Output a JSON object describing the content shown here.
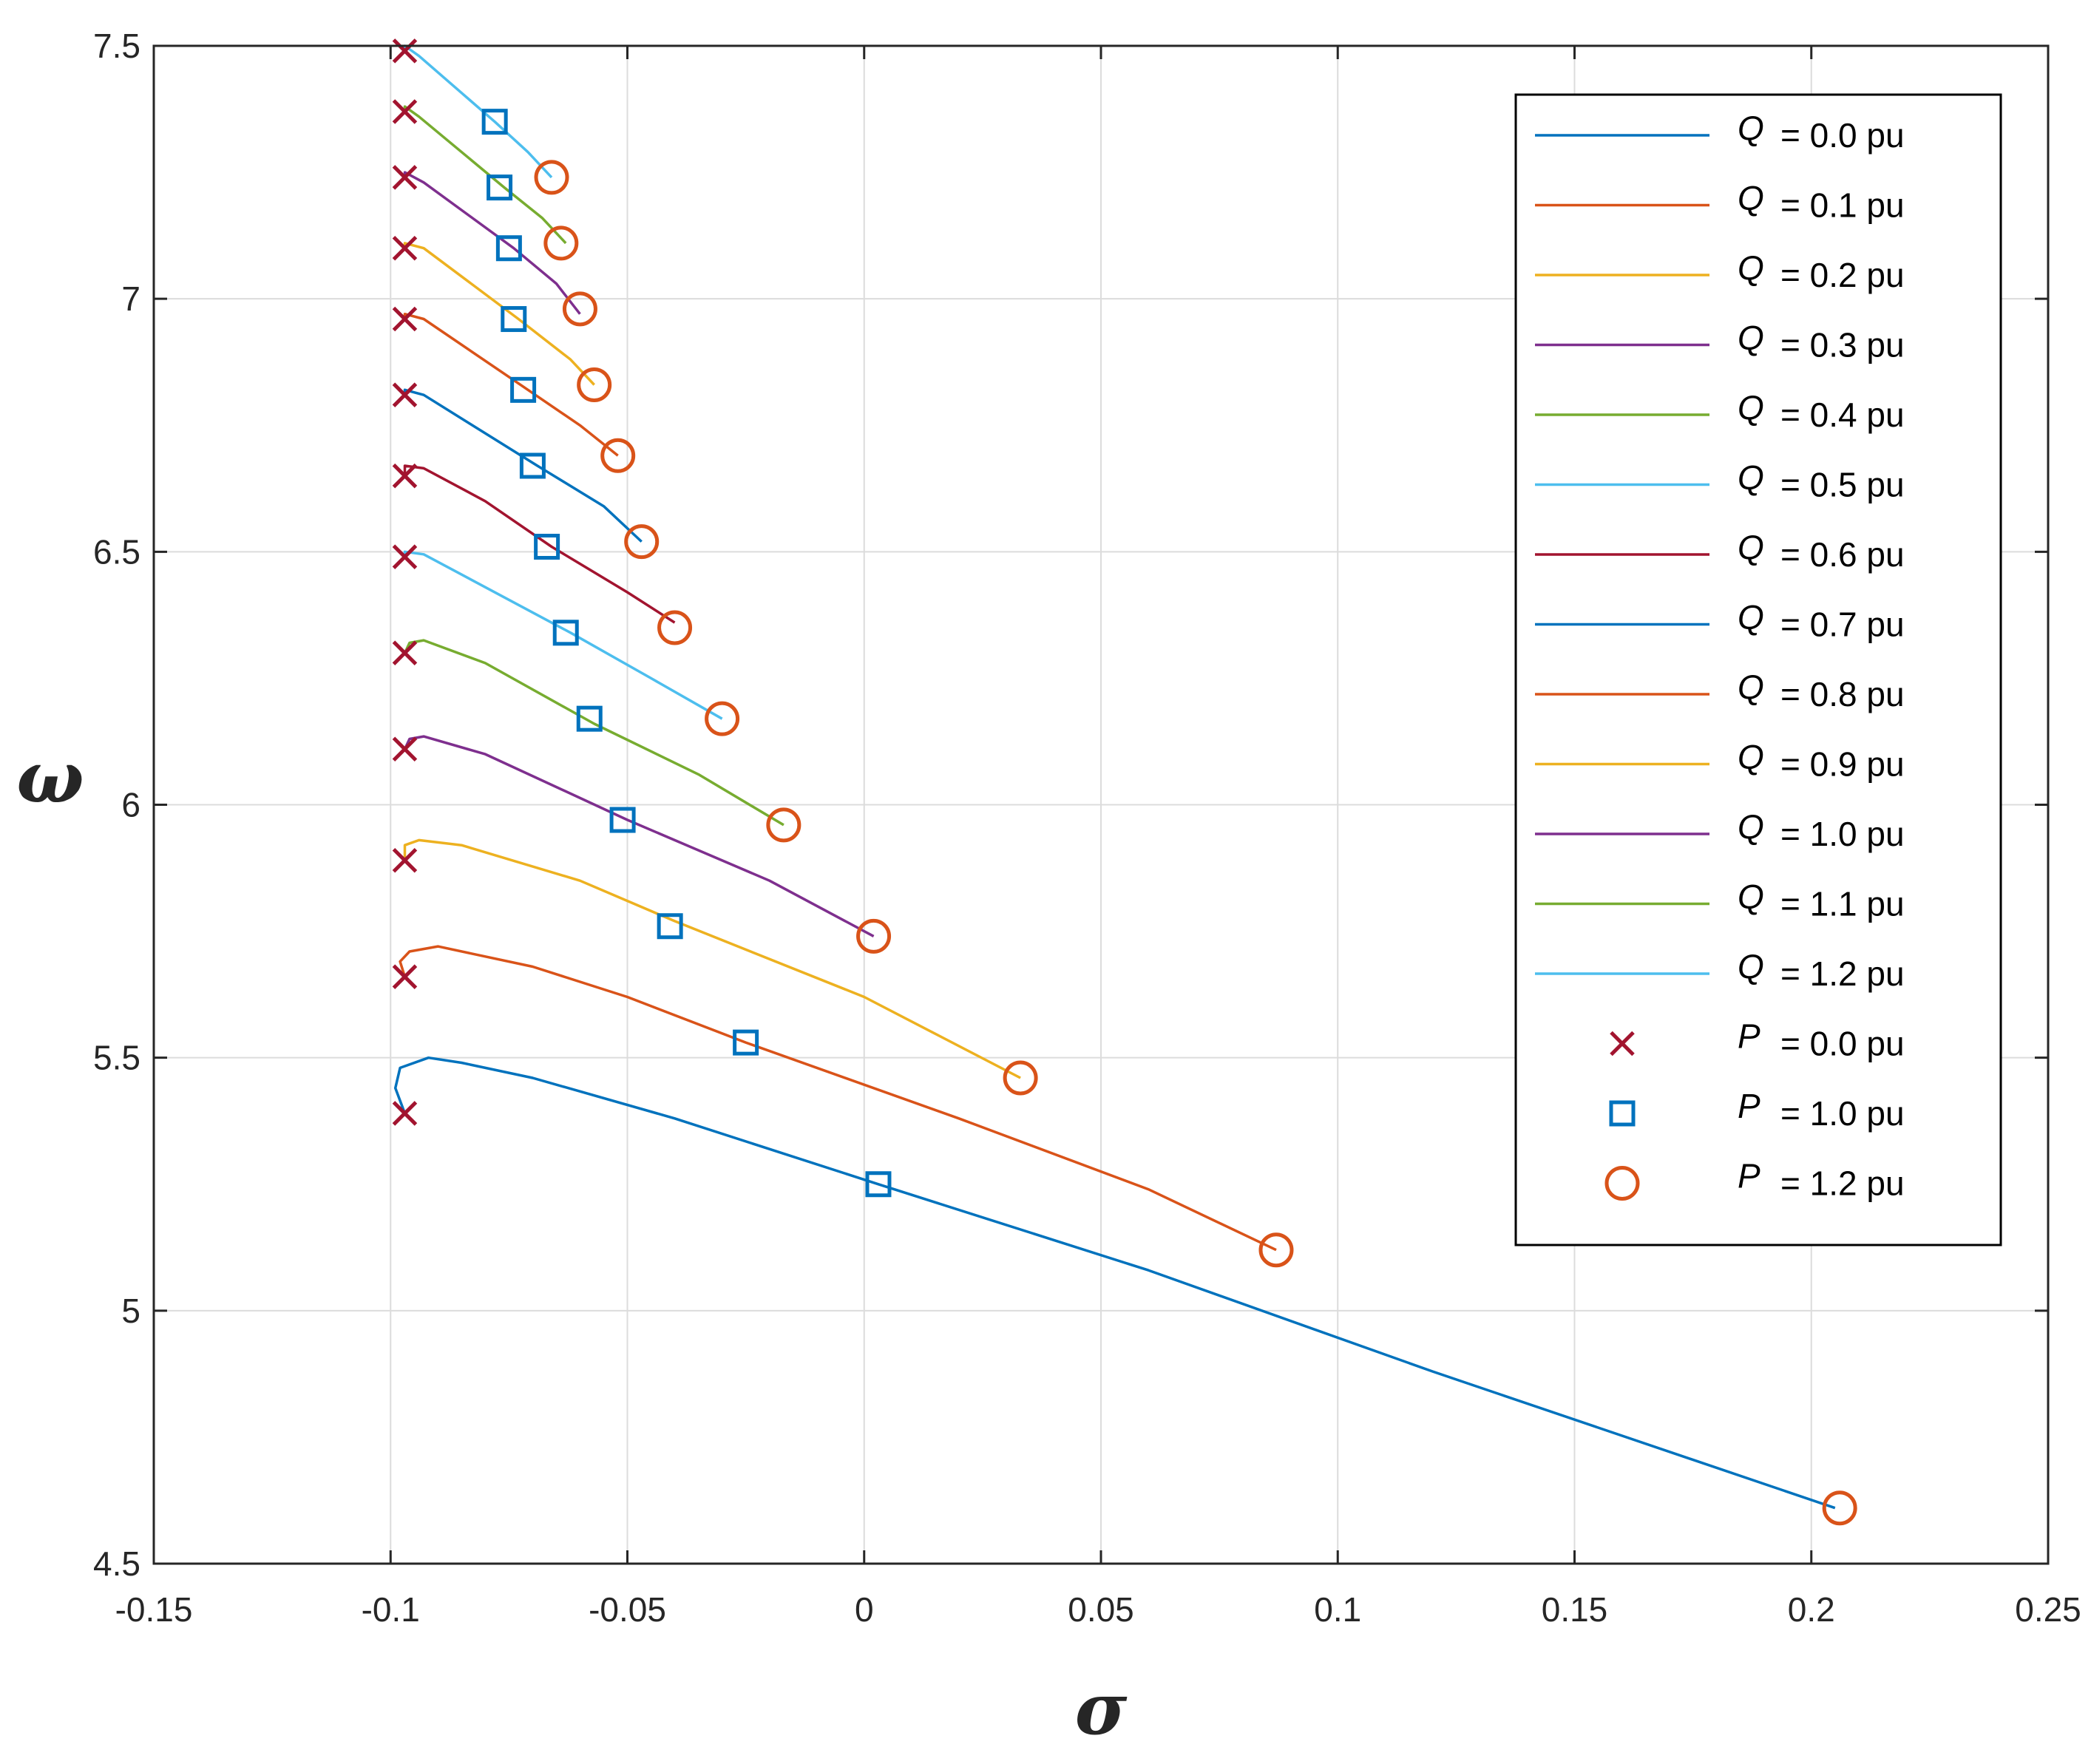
{
  "chart_data": {
    "type": "line",
    "title": "",
    "xlabel": "σ",
    "ylabel": "ω",
    "xlim": [
      -0.15,
      0.25
    ],
    "ylim": [
      4.5,
      7.5
    ],
    "xticks": [
      -0.15,
      -0.1,
      -0.05,
      0,
      0.05,
      0.1,
      0.15,
      0.2,
      0.25
    ],
    "xtick_labels": [
      "-0.15",
      "-0.1",
      "-0.05",
      "0",
      "0.05",
      "0.1",
      "0.15",
      "0.2",
      "0.25"
    ],
    "yticks": [
      4.5,
      5,
      5.5,
      6,
      6.5,
      7,
      7.5
    ],
    "ytick_labels": [
      "4.5",
      "5",
      "5.5",
      "6",
      "6.5",
      "7",
      "7.5"
    ],
    "grid": true,
    "legend_position": "top-right",
    "series": [
      {
        "name": "Q",
        "label": "= 0.0 pu",
        "color": "#0072BD",
        "points": [
          [
            -0.097,
            5.39
          ],
          [
            -0.099,
            5.44
          ],
          [
            -0.098,
            5.48
          ],
          [
            -0.092,
            5.5
          ],
          [
            -0.085,
            5.49
          ],
          [
            -0.07,
            5.46
          ],
          [
            -0.04,
            5.38
          ],
          [
            0.003,
            5.25
          ],
          [
            0.06,
            5.08
          ],
          [
            0.12,
            4.88
          ],
          [
            0.205,
            4.61
          ]
        ]
      },
      {
        "name": "Q",
        "label": "= 0.1 pu",
        "color": "#D95319",
        "points": [
          [
            -0.097,
            5.66
          ],
          [
            -0.098,
            5.69
          ],
          [
            -0.096,
            5.71
          ],
          [
            -0.09,
            5.72
          ],
          [
            -0.07,
            5.68
          ],
          [
            -0.05,
            5.62
          ],
          [
            -0.025,
            5.53
          ],
          [
            0.02,
            5.38
          ],
          [
            0.06,
            5.24
          ],
          [
            0.087,
            5.12
          ]
        ]
      },
      {
        "name": "Q",
        "label": "= 0.2 pu",
        "color": "#EDB120",
        "points": [
          [
            -0.097,
            5.89
          ],
          [
            -0.097,
            5.92
          ],
          [
            -0.094,
            5.93
          ],
          [
            -0.085,
            5.92
          ],
          [
            -0.06,
            5.85
          ],
          [
            -0.04,
            5.77
          ],
          [
            0.0,
            5.62
          ],
          [
            0.033,
            5.46
          ]
        ]
      },
      {
        "name": "Q",
        "label": "= 0.3 pu",
        "color": "#7E2F8E",
        "points": [
          [
            -0.097,
            6.11
          ],
          [
            -0.096,
            6.13
          ],
          [
            -0.093,
            6.135
          ],
          [
            -0.08,
            6.1
          ],
          [
            -0.05,
            5.97
          ],
          [
            -0.02,
            5.85
          ],
          [
            0.002,
            5.74
          ]
        ]
      },
      {
        "name": "Q",
        "label": "= 0.4 pu",
        "color": "#77AC30",
        "points": [
          [
            -0.097,
            6.3
          ],
          [
            -0.096,
            6.32
          ],
          [
            -0.093,
            6.325
          ],
          [
            -0.08,
            6.28
          ],
          [
            -0.057,
            6.16
          ],
          [
            -0.035,
            6.06
          ],
          [
            -0.017,
            5.96
          ]
        ]
      },
      {
        "name": "Q",
        "label": "= 0.5 pu",
        "color": "#4DBEEE",
        "points": [
          [
            -0.097,
            6.49
          ],
          [
            -0.097,
            6.5
          ],
          [
            -0.093,
            6.495
          ],
          [
            -0.062,
            6.34
          ],
          [
            -0.045,
            6.25
          ],
          [
            -0.03,
            6.17
          ]
        ]
      },
      {
        "name": "Q",
        "label": "= 0.6 pu",
        "color": "#A2142F",
        "points": [
          [
            -0.097,
            6.65
          ],
          [
            -0.097,
            6.67
          ],
          [
            -0.093,
            6.665
          ],
          [
            -0.08,
            6.6
          ],
          [
            -0.066,
            6.51
          ],
          [
            -0.05,
            6.42
          ],
          [
            -0.04,
            6.36
          ]
        ]
      },
      {
        "name": "Q",
        "label": "= 0.7 pu",
        "color": "#0072BD",
        "points": [
          [
            -0.097,
            6.81
          ],
          [
            -0.097,
            6.82
          ],
          [
            -0.093,
            6.81
          ],
          [
            -0.069,
            6.67
          ],
          [
            -0.055,
            6.59
          ],
          [
            -0.047,
            6.52
          ]
        ]
      },
      {
        "name": "Q",
        "label": "= 0.8 pu",
        "color": "#D95319",
        "points": [
          [
            -0.097,
            6.96
          ],
          [
            -0.097,
            6.97
          ],
          [
            -0.093,
            6.96
          ],
          [
            -0.071,
            6.82
          ],
          [
            -0.06,
            6.75
          ],
          [
            -0.052,
            6.69
          ]
        ]
      },
      {
        "name": "Q",
        "label": "= 0.9 pu",
        "color": "#EDB120",
        "points": [
          [
            -0.097,
            7.1
          ],
          [
            -0.097,
            7.11
          ],
          [
            -0.093,
            7.1
          ],
          [
            -0.073,
            6.96
          ],
          [
            -0.062,
            6.88
          ],
          [
            -0.057,
            6.83
          ]
        ]
      },
      {
        "name": "Q",
        "label": "= 1.0 pu",
        "color": "#7E2F8E",
        "points": [
          [
            -0.097,
            7.24
          ],
          [
            -0.097,
            7.25
          ],
          [
            -0.093,
            7.23
          ],
          [
            -0.074,
            7.1
          ],
          [
            -0.065,
            7.03
          ],
          [
            -0.06,
            6.97
          ]
        ]
      },
      {
        "name": "Q",
        "label": "= 1.1 pu",
        "color": "#77AC30",
        "points": [
          [
            -0.097,
            7.37
          ],
          [
            -0.097,
            7.38
          ],
          [
            -0.094,
            7.36
          ],
          [
            -0.076,
            7.22
          ],
          [
            -0.068,
            7.16
          ],
          [
            -0.063,
            7.11
          ]
        ]
      },
      {
        "name": "Q",
        "label": "= 1.2 pu",
        "color": "#4DBEEE",
        "points": [
          [
            -0.097,
            7.49
          ],
          [
            -0.097,
            7.5
          ],
          [
            -0.094,
            7.48
          ],
          [
            -0.078,
            7.35
          ],
          [
            -0.071,
            7.29
          ],
          [
            -0.066,
            7.24
          ]
        ]
      }
    ],
    "markers": [
      {
        "name": "P",
        "label": "= 0.0 pu",
        "symbol": "x",
        "color": "#A2142F",
        "points": [
          [
            -0.097,
            5.39
          ],
          [
            -0.097,
            5.66
          ],
          [
            -0.097,
            5.89
          ],
          [
            -0.097,
            6.11
          ],
          [
            -0.097,
            6.3
          ],
          [
            -0.097,
            6.49
          ],
          [
            -0.097,
            6.65
          ],
          [
            -0.097,
            6.81
          ],
          [
            -0.097,
            6.96
          ],
          [
            -0.097,
            7.1
          ],
          [
            -0.097,
            7.24
          ],
          [
            -0.097,
            7.37
          ],
          [
            -0.097,
            7.49
          ]
        ]
      },
      {
        "name": "P",
        "label": "= 1.0 pu",
        "symbol": "square",
        "color": "#0072BD",
        "points": [
          [
            0.003,
            5.25
          ],
          [
            -0.025,
            5.53
          ],
          [
            -0.041,
            5.76
          ],
          [
            -0.051,
            5.97
          ],
          [
            -0.058,
            6.17
          ],
          [
            -0.063,
            6.34
          ],
          [
            -0.067,
            6.51
          ],
          [
            -0.07,
            6.67
          ],
          [
            -0.072,
            6.82
          ],
          [
            -0.074,
            6.96
          ],
          [
            -0.075,
            7.1
          ],
          [
            -0.077,
            7.22
          ],
          [
            -0.078,
            7.35
          ]
        ]
      },
      {
        "name": "P",
        "label": "= 1.2 pu",
        "symbol": "circle",
        "color": "#D95319",
        "points": [
          [
            0.206,
            4.61
          ],
          [
            0.087,
            5.12
          ],
          [
            0.033,
            5.46
          ],
          [
            0.002,
            5.74
          ],
          [
            -0.017,
            5.96
          ],
          [
            -0.03,
            6.17
          ],
          [
            -0.04,
            6.35
          ],
          [
            -0.047,
            6.52
          ],
          [
            -0.052,
            6.69
          ],
          [
            -0.057,
            6.83
          ],
          [
            -0.06,
            6.98
          ],
          [
            -0.064,
            7.11
          ],
          [
            -0.066,
            7.24
          ]
        ]
      }
    ]
  }
}
